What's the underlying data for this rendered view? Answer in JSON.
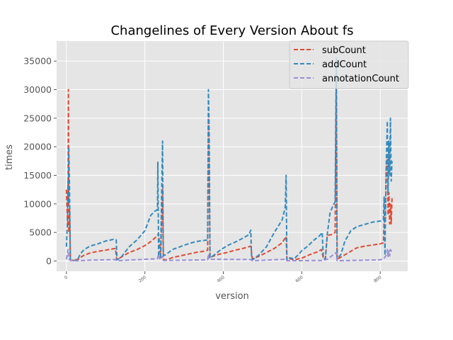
{
  "chart_data": {
    "type": "line",
    "title": "Changelines of Every Version About fs",
    "xlabel": "version",
    "ylabel": "times",
    "xlim": [
      -25,
      870
    ],
    "ylim": [
      -1800,
      38500
    ],
    "xticks": [
      0,
      200,
      400,
      600,
      800
    ],
    "yticks": [
      0,
      5000,
      10000,
      15000,
      20000,
      25000,
      30000,
      35000
    ],
    "grid": true,
    "legend_position": "top-right",
    "series": [
      {
        "name": "subCount",
        "color": "#E24A33",
        "dash": "dashed",
        "points": [
          [
            0,
            12500
          ],
          [
            2,
            8000
          ],
          [
            4,
            6000
          ],
          [
            5,
            30000
          ],
          [
            6,
            5000
          ],
          [
            8,
            9000
          ],
          [
            10,
            200
          ],
          [
            12,
            100
          ],
          [
            30,
            300
          ],
          [
            35,
            600
          ],
          [
            45,
            1000
          ],
          [
            60,
            1400
          ],
          [
            80,
            1700
          ],
          [
            100,
            1900
          ],
          [
            125,
            2200
          ],
          [
            128,
            200
          ],
          [
            140,
            700
          ],
          [
            160,
            1500
          ],
          [
            180,
            2000
          ],
          [
            200,
            2700
          ],
          [
            215,
            3400
          ],
          [
            230,
            4300
          ],
          [
            235,
            4800
          ],
          [
            238,
            2300
          ],
          [
            240,
            600
          ],
          [
            245,
            12700
          ],
          [
            247,
            300
          ],
          [
            255,
            200
          ],
          [
            270,
            600
          ],
          [
            290,
            900
          ],
          [
            310,
            1200
          ],
          [
            330,
            1500
          ],
          [
            350,
            1700
          ],
          [
            360,
            1900
          ],
          [
            362,
            25000
          ],
          [
            364,
            16000
          ],
          [
            366,
            600
          ],
          [
            372,
            800
          ],
          [
            390,
            1200
          ],
          [
            410,
            1500
          ],
          [
            430,
            1900
          ],
          [
            450,
            2200
          ],
          [
            470,
            2600
          ],
          [
            474,
            400
          ],
          [
            490,
            800
          ],
          [
            510,
            1500
          ],
          [
            530,
            2200
          ],
          [
            550,
            3200
          ],
          [
            560,
            4300
          ],
          [
            562,
            300
          ],
          [
            565,
            500
          ],
          [
            580,
            200
          ],
          [
            600,
            500
          ],
          [
            620,
            1100
          ],
          [
            640,
            1600
          ],
          [
            650,
            2000
          ],
          [
            655,
            500
          ],
          [
            660,
            300
          ],
          [
            665,
            4500
          ],
          [
            675,
            4600
          ],
          [
            685,
            5000
          ],
          [
            688,
            32000
          ],
          [
            690,
            300
          ],
          [
            700,
            700
          ],
          [
            720,
            1500
          ],
          [
            740,
            2300
          ],
          [
            760,
            2600
          ],
          [
            780,
            2800
          ],
          [
            800,
            3000
          ],
          [
            808,
            3200
          ],
          [
            810,
            7500
          ],
          [
            813,
            7000
          ],
          [
            815,
            16000
          ],
          [
            818,
            18000
          ],
          [
            820,
            8000
          ],
          [
            822,
            12000
          ],
          [
            824,
            6500
          ],
          [
            826,
            10000
          ],
          [
            828,
            6500
          ],
          [
            830,
            11000
          ]
        ]
      },
      {
        "name": "addCount",
        "color": "#348ABD",
        "dash": "dashed",
        "points": [
          [
            0,
            2500
          ],
          [
            2,
            6000
          ],
          [
            4,
            14000
          ],
          [
            5,
            10000
          ],
          [
            6,
            20000
          ],
          [
            8,
            12000
          ],
          [
            10,
            300
          ],
          [
            12,
            100
          ],
          [
            28,
            100
          ],
          [
            35,
            1200
          ],
          [
            45,
            2000
          ],
          [
            60,
            2600
          ],
          [
            80,
            3000
          ],
          [
            100,
            3500
          ],
          [
            120,
            3800
          ],
          [
            127,
            3700
          ],
          [
            129,
            200
          ],
          [
            140,
            700
          ],
          [
            160,
            2500
          ],
          [
            180,
            3700
          ],
          [
            200,
            5300
          ],
          [
            215,
            8000
          ],
          [
            225,
            8700
          ],
          [
            232,
            9000
          ],
          [
            233,
            17300
          ],
          [
            235,
            1000
          ],
          [
            240,
            700
          ],
          [
            245,
            21000
          ],
          [
            247,
            900
          ],
          [
            255,
            1200
          ],
          [
            270,
            2000
          ],
          [
            290,
            2500
          ],
          [
            310,
            3000
          ],
          [
            330,
            3400
          ],
          [
            350,
            3600
          ],
          [
            360,
            3700
          ],
          [
            362,
            30000
          ],
          [
            364,
            22000
          ],
          [
            366,
            600
          ],
          [
            372,
            800
          ],
          [
            390,
            1800
          ],
          [
            410,
            2700
          ],
          [
            430,
            3300
          ],
          [
            450,
            4000
          ],
          [
            465,
            4600
          ],
          [
            470,
            5400
          ],
          [
            472,
            400
          ],
          [
            474,
            200
          ],
          [
            490,
            1000
          ],
          [
            510,
            2500
          ],
          [
            530,
            5000
          ],
          [
            550,
            7200
          ],
          [
            558,
            9500
          ],
          [
            560,
            15000
          ],
          [
            562,
            200
          ],
          [
            565,
            600
          ],
          [
            580,
            400
          ],
          [
            590,
            1000
          ],
          [
            600,
            1800
          ],
          [
            615,
            2600
          ],
          [
            630,
            3600
          ],
          [
            645,
            4400
          ],
          [
            652,
            5000
          ],
          [
            655,
            500
          ],
          [
            660,
            300
          ],
          [
            665,
            4700
          ],
          [
            672,
            8400
          ],
          [
            680,
            9800
          ],
          [
            685,
            10300
          ],
          [
            688,
            35500
          ],
          [
            690,
            300
          ],
          [
            700,
            1200
          ],
          [
            710,
            3500
          ],
          [
            725,
            5300
          ],
          [
            740,
            6000
          ],
          [
            760,
            6400
          ],
          [
            780,
            6800
          ],
          [
            800,
            7000
          ],
          [
            808,
            7200
          ],
          [
            810,
            11200
          ],
          [
            812,
            1000
          ],
          [
            815,
            16000
          ],
          [
            818,
            24500
          ],
          [
            820,
            12000
          ],
          [
            822,
            21000
          ],
          [
            824,
            15000
          ],
          [
            826,
            25000
          ],
          [
            828,
            14000
          ],
          [
            830,
            17500
          ]
        ]
      },
      {
        "name": "annotationCount",
        "color": "#988ED5",
        "dash": "dashed",
        "points": [
          [
            0,
            300
          ],
          [
            4,
            2000
          ],
          [
            6,
            400
          ],
          [
            10,
            100
          ],
          [
            30,
            50
          ],
          [
            60,
            150
          ],
          [
            100,
            200
          ],
          [
            125,
            250
          ],
          [
            128,
            50
          ],
          [
            200,
            300
          ],
          [
            232,
            400
          ],
          [
            235,
            1200
          ],
          [
            238,
            200
          ],
          [
            245,
            800
          ],
          [
            247,
            100
          ],
          [
            300,
            150
          ],
          [
            360,
            200
          ],
          [
            362,
            1200
          ],
          [
            364,
            300
          ],
          [
            470,
            250
          ],
          [
            474,
            50
          ],
          [
            560,
            300
          ],
          [
            562,
            50
          ],
          [
            655,
            100
          ],
          [
            665,
            300
          ],
          [
            688,
            1500
          ],
          [
            690,
            50
          ],
          [
            800,
            200
          ],
          [
            810,
            500
          ],
          [
            815,
            1000
          ],
          [
            818,
            2000
          ],
          [
            820,
            800
          ],
          [
            822,
            1800
          ],
          [
            824,
            900
          ],
          [
            826,
            2000
          ],
          [
            830,
            1500
          ]
        ]
      }
    ]
  }
}
